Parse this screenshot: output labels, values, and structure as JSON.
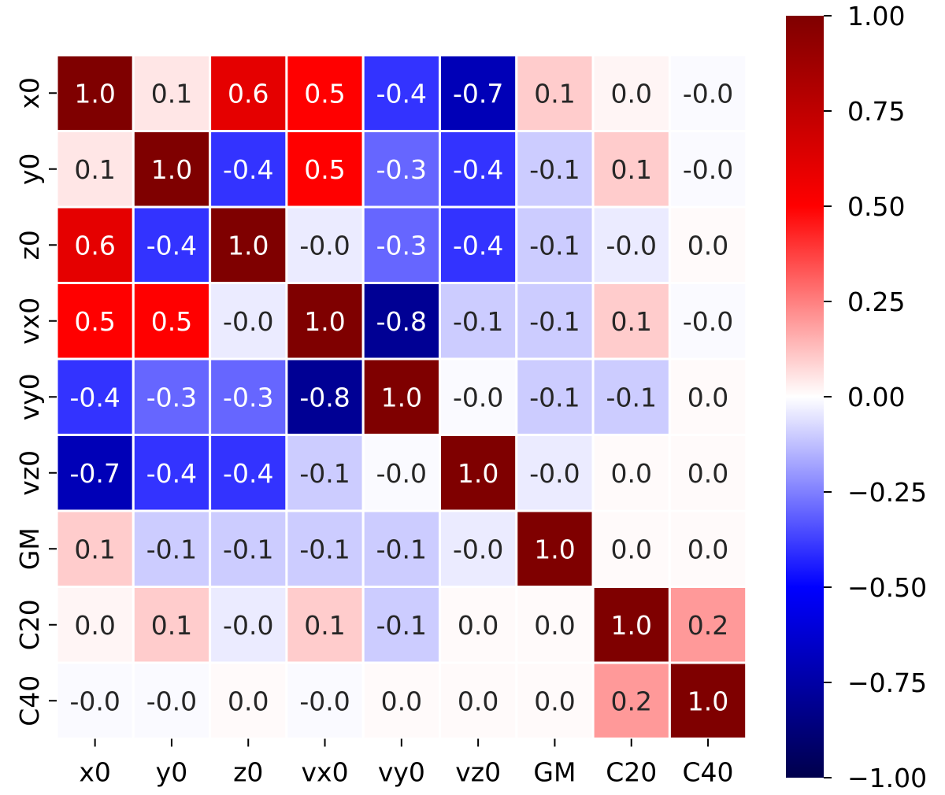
{
  "chart_data": {
    "type": "heatmap",
    "title": "",
    "xlabel": "",
    "ylabel": "",
    "labels": [
      "x0",
      "y0",
      "z0",
      "vx0",
      "vy0",
      "vz0",
      "GM",
      "C20",
      "C40"
    ],
    "matrix": [
      [
        1.0,
        0.05,
        0.6,
        0.5,
        -0.4,
        -0.7,
        0.1,
        0.02,
        -0.01
      ],
      [
        0.05,
        1.0,
        -0.4,
        0.5,
        -0.3,
        -0.4,
        -0.1,
        0.1,
        -0.01
      ],
      [
        0.6,
        -0.4,
        1.0,
        -0.04,
        -0.3,
        -0.4,
        -0.1,
        -0.04,
        0.01
      ],
      [
        0.5,
        0.5,
        -0.04,
        1.0,
        -0.8,
        -0.1,
        -0.1,
        0.1,
        -0.01
      ],
      [
        -0.4,
        -0.3,
        -0.3,
        -0.8,
        1.0,
        -0.01,
        -0.1,
        -0.1,
        0.01
      ],
      [
        -0.7,
        -0.4,
        -0.4,
        -0.1,
        -0.01,
        1.0,
        -0.04,
        0.01,
        0.01
      ],
      [
        0.1,
        -0.1,
        -0.1,
        -0.1,
        -0.1,
        -0.04,
        1.0,
        0.01,
        0.01
      ],
      [
        0.02,
        0.1,
        -0.04,
        0.1,
        -0.1,
        0.01,
        0.01,
        1.0,
        0.2
      ],
      [
        -0.01,
        -0.01,
        0.01,
        -0.01,
        0.01,
        0.01,
        0.01,
        0.2,
        1.0
      ]
    ],
    "annotations": [
      [
        "1.0",
        "0.1",
        "0.6",
        "0.5",
        "-0.4",
        "-0.7",
        "0.1",
        "0.0",
        "-0.0"
      ],
      [
        "0.1",
        "1.0",
        "-0.4",
        "0.5",
        "-0.3",
        "-0.4",
        "-0.1",
        "0.1",
        "-0.0"
      ],
      [
        "0.6",
        "-0.4",
        "1.0",
        "-0.0",
        "-0.3",
        "-0.4",
        "-0.1",
        "-0.0",
        "0.0"
      ],
      [
        "0.5",
        "0.5",
        "-0.0",
        "1.0",
        "-0.8",
        "-0.1",
        "-0.1",
        "0.1",
        "-0.0"
      ],
      [
        "-0.4",
        "-0.3",
        "-0.3",
        "-0.8",
        "1.0",
        "-0.0",
        "-0.1",
        "-0.1",
        "0.0"
      ],
      [
        "-0.7",
        "-0.4",
        "-0.4",
        "-0.1",
        "-0.0",
        "1.0",
        "-0.0",
        "0.0",
        "0.0"
      ],
      [
        "0.1",
        "-0.1",
        "-0.1",
        "-0.1",
        "-0.1",
        "-0.0",
        "1.0",
        "0.0",
        "0.0"
      ],
      [
        "0.0",
        "0.1",
        "-0.0",
        "0.1",
        "-0.1",
        "0.0",
        "0.0",
        "1.0",
        "0.2"
      ],
      [
        "-0.0",
        "-0.0",
        "0.0",
        "-0.0",
        "0.0",
        "0.0",
        "0.0",
        "0.2",
        "1.0"
      ]
    ],
    "colormap": "seismic",
    "vmin": -1.0,
    "vmax": 1.0,
    "colorbar": {
      "ticks": [
        1.0,
        0.75,
        0.5,
        0.25,
        0.0,
        -0.25,
        -0.5,
        -0.75,
        -1.0
      ],
      "tick_labels": [
        "1.00",
        "0.75",
        "0.50",
        "0.25",
        "0.00",
        "−0.25",
        "−0.50",
        "−0.75",
        "−1.00"
      ]
    },
    "grid": true,
    "legend": "colorbar-right"
  }
}
